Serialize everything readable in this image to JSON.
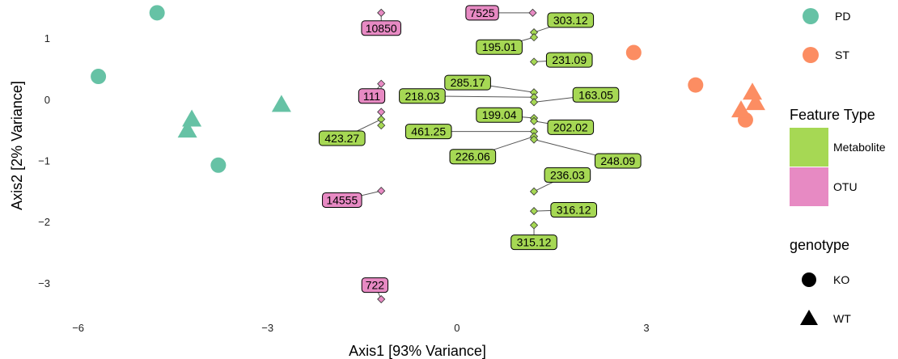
{
  "chart_data": {
    "type": "scatter",
    "title": "",
    "xlabel": "Axis1 [93% Variance]",
    "ylabel": "Axis2 [2% Variance]",
    "xlim": [
      -6.7,
      5.0
    ],
    "ylim": [
      -3.55,
      1.55
    ],
    "x_ticks": [
      -6,
      -3,
      0,
      3
    ],
    "x_tick_labels": [
      "−6",
      "−3",
      "0",
      "3"
    ],
    "y_ticks": [
      -3,
      -2,
      -1,
      0,
      1
    ],
    "y_tick_labels": [
      "−3",
      "−2",
      "−1",
      "0",
      "1"
    ],
    "grid": false,
    "colors": {
      "PD": "#66c2a5",
      "ST": "#fc8d62",
      "Metabolite": "#a6d854",
      "OTU": "#e78ac3"
    },
    "samples": [
      {
        "x": -4.75,
        "y": 1.42,
        "group": "PD",
        "genotype": "KO"
      },
      {
        "x": -5.68,
        "y": 0.38,
        "group": "PD",
        "genotype": "KO"
      },
      {
        "x": -3.78,
        "y": -1.07,
        "group": "PD",
        "genotype": "KO"
      },
      {
        "x": -4.2,
        "y": -0.32,
        "group": "PD",
        "genotype": "WT"
      },
      {
        "x": -4.27,
        "y": -0.5,
        "group": "PD",
        "genotype": "WT"
      },
      {
        "x": -2.78,
        "y": -0.08,
        "group": "PD",
        "genotype": "WT"
      },
      {
        "x": 2.8,
        "y": 0.77,
        "group": "ST",
        "genotype": "KO"
      },
      {
        "x": 3.78,
        "y": 0.24,
        "group": "ST",
        "genotype": "KO"
      },
      {
        "x": 4.57,
        "y": -0.33,
        "group": "ST",
        "genotype": "KO"
      },
      {
        "x": 4.68,
        "y": 0.12,
        "group": "ST",
        "genotype": "WT"
      },
      {
        "x": 4.5,
        "y": -0.17,
        "group": "ST",
        "genotype": "WT"
      },
      {
        "x": 4.73,
        "y": -0.05,
        "group": "ST",
        "genotype": "WT"
      }
    ],
    "features": [
      {
        "x": -1.2,
        "y": 1.42,
        "label": "10850",
        "type": "OTU",
        "lx": -1.2,
        "ly": 1.17
      },
      {
        "x": 1.2,
        "y": 1.42,
        "label": "7525",
        "type": "OTU",
        "lx": 0.4,
        "ly": 1.42
      },
      {
        "x": 1.22,
        "y": 1.1,
        "label": "303.12",
        "type": "Metabolite",
        "lx": 1.8,
        "ly": 1.3
      },
      {
        "x": 1.22,
        "y": 1.02,
        "label": "195.01",
        "type": "Metabolite",
        "lx": 0.67,
        "ly": 0.86
      },
      {
        "x": 1.22,
        "y": 0.62,
        "label": "231.09",
        "type": "Metabolite",
        "lx": 1.78,
        "ly": 0.65
      },
      {
        "x": 1.22,
        "y": 0.12,
        "label": "285.17",
        "type": "Metabolite",
        "lx": 0.17,
        "ly": 0.28
      },
      {
        "x": 1.22,
        "y": 0.04,
        "label": "218.03",
        "type": "Metabolite",
        "lx": -0.55,
        "ly": 0.06
      },
      {
        "x": 1.22,
        "y": -0.04,
        "label": "163.05",
        "type": "Metabolite",
        "lx": 2.2,
        "ly": 0.08
      },
      {
        "x": 1.22,
        "y": -0.3,
        "label": "199.04",
        "type": "Metabolite",
        "lx": 0.67,
        "ly": -0.25
      },
      {
        "x": 1.22,
        "y": -0.35,
        "label": "202.02",
        "type": "Metabolite",
        "lx": 1.8,
        "ly": -0.45
      },
      {
        "x": 1.22,
        "y": -0.52,
        "label": "461.25",
        "type": "Metabolite",
        "lx": -0.45,
        "ly": -0.52
      },
      {
        "x": 1.22,
        "y": -0.6,
        "label": "226.06",
        "type": "Metabolite",
        "lx": 0.25,
        "ly": -0.93
      },
      {
        "x": 1.22,
        "y": -0.65,
        "label": "248.09",
        "type": "Metabolite",
        "lx": 2.55,
        "ly": -1.0
      },
      {
        "x": 1.22,
        "y": -1.5,
        "label": "236.03",
        "type": "Metabolite",
        "lx": 1.75,
        "ly": -1.23
      },
      {
        "x": 1.22,
        "y": -1.82,
        "label": "316.12",
        "type": "Metabolite",
        "lx": 1.85,
        "ly": -1.8
      },
      {
        "x": 1.22,
        "y": -2.05,
        "label": "315.12",
        "type": "Metabolite",
        "lx": 1.22,
        "ly": -2.33
      },
      {
        "x": -1.2,
        "y": 0.26,
        "label": "111",
        "type": "OTU",
        "lx": -1.35,
        "ly": 0.06
      },
      {
        "x": -1.2,
        "y": -0.2,
        "label": "",
        "type": "OTU"
      },
      {
        "x": -1.2,
        "y": -0.32,
        "label": "423.27",
        "type": "Metabolite",
        "lx": -1.82,
        "ly": -0.63
      },
      {
        "x": -1.2,
        "y": -0.42,
        "label": "",
        "type": "Metabolite"
      },
      {
        "x": -1.2,
        "y": -1.49,
        "label": "14555",
        "type": "OTU",
        "lx": -1.82,
        "ly": -1.64
      },
      {
        "x": -1.2,
        "y": -3.26,
        "label": "722",
        "type": "OTU",
        "lx": -1.3,
        "ly": -3.03
      }
    ],
    "legend": {
      "placement": "right",
      "group_entries": [
        {
          "label": "PD",
          "color": "#66c2a5"
        },
        {
          "label": "ST",
          "color": "#fc8d62"
        }
      ],
      "feature_title": "Feature Type",
      "feature_entries": [
        {
          "label": "Metabolite",
          "color": "#a6d854"
        },
        {
          "label": "OTU",
          "color": "#e78ac3"
        }
      ],
      "genotype_title": "genotype",
      "genotype_entries": [
        {
          "label": "KO",
          "shape": "circle"
        },
        {
          "label": "WT",
          "shape": "triangle"
        }
      ]
    }
  }
}
